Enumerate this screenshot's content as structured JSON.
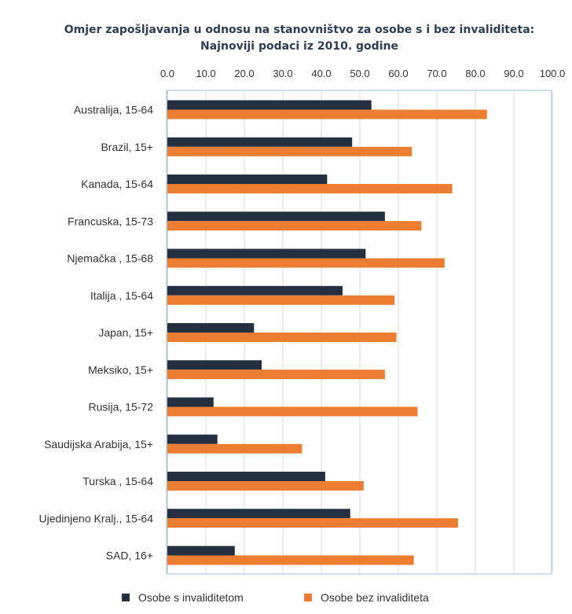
{
  "chart_data": {
    "type": "bar",
    "orientation": "horizontal",
    "title": "Omjer zapošljavanja u odnosu na stanovništvo za osobe s i bez invaliditeta:",
    "subtitle": "Najnoviji podaci iz 2010. godine",
    "xlim": [
      0,
      100
    ],
    "xticks": [
      "0.0",
      "10.0",
      "20.0",
      "30.0",
      "40.0",
      "50.0",
      "60.0",
      "70.0",
      "80.0",
      "90.0",
      "100.0"
    ],
    "x_axis_position": "top",
    "grid": true,
    "legend_position": "bottom",
    "categories": [
      "Australija, 15-64",
      "Brazil, 15+",
      "Kanada, 15-64",
      "Francuska, 15-73",
      "Njemačka , 15-68",
      "Italija , 15-64",
      "Japan, 15+",
      "Meksiko, 15+",
      "Rusija, 15-72",
      "Saudijska Arabija, 15+",
      "Turska , 15-64",
      "Ujedinjeno Kralj., 15-64",
      "SAD, 16+"
    ],
    "series": [
      {
        "name": "Osobe s invaliditetom",
        "color": "#243040",
        "values": [
          53.0,
          48.0,
          41.5,
          56.5,
          51.5,
          45.5,
          22.5,
          24.5,
          12.0,
          13.0,
          41.0,
          47.5,
          17.5
        ]
      },
      {
        "name": "Osobe bez invaliditeta",
        "color": "#ed7d31",
        "values": [
          83.0,
          63.5,
          74.0,
          66.0,
          72.0,
          59.0,
          59.5,
          56.5,
          65.0,
          35.0,
          51.0,
          75.5,
          64.0
        ]
      }
    ]
  }
}
